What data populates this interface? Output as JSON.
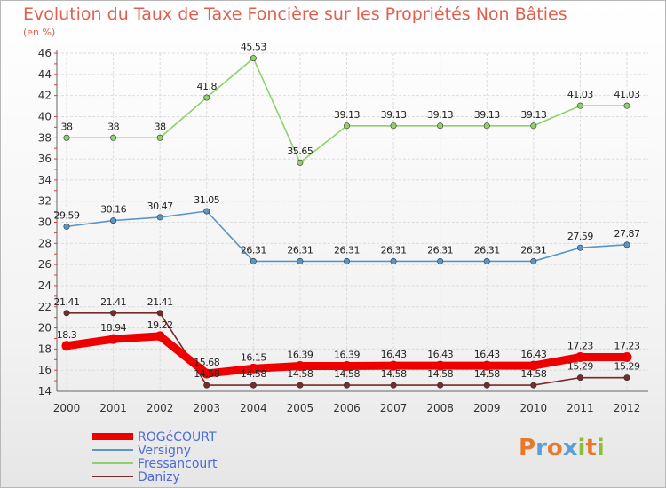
{
  "title": "Evolution du Taux de Taxe Foncière sur les Propriétés Non Bâties",
  "unit": "(en %)",
  "logo": "Proxiti",
  "chart_data": {
    "type": "line",
    "title": "Evolution du Taux de Taxe Foncière sur les Propriétés Non Bâties",
    "ylabel": "(en %)",
    "xlabel": "",
    "ylim": [
      14,
      46
    ],
    "yticks": [
      14,
      16,
      18,
      20,
      22,
      24,
      26,
      28,
      30,
      32,
      34,
      36,
      38,
      40,
      42,
      44,
      46
    ],
    "categories": [
      "2000",
      "2001",
      "2002",
      "2003",
      "2004",
      "2005",
      "2006",
      "2007",
      "2008",
      "2009",
      "2010",
      "2011",
      "2012"
    ],
    "grid": true,
    "legend_position": "bottom-left",
    "series": [
      {
        "name": "Fressancourt",
        "color": "#8fd16a",
        "values": [
          38,
          38,
          38,
          41.8,
          45.53,
          35.65,
          39.13,
          39.13,
          39.13,
          39.13,
          39.13,
          41.03,
          41.03
        ],
        "labels": [
          "38",
          "38",
          "38",
          "41.8",
          "45.53",
          "35.65",
          "39.13",
          "39.13",
          "39.13",
          "39.13",
          "39.13",
          "41.03",
          "41.03"
        ]
      },
      {
        "name": "Versigny",
        "color": "#5a96c8",
        "values": [
          29.59,
          30.16,
          30.47,
          31.05,
          26.31,
          26.31,
          26.31,
          26.31,
          26.31,
          26.31,
          26.31,
          27.59,
          27.87
        ],
        "labels": [
          "29.59",
          "30.16",
          "30.47",
          "31.05",
          "26.31",
          "26.31",
          "26.31",
          "26.31",
          "26.31",
          "26.31",
          "26.31",
          "27.59",
          "27.87"
        ]
      },
      {
        "name": "Danizy",
        "color": "#7a2a2a",
        "values": [
          21.41,
          21.41,
          21.41,
          14.58,
          14.58,
          14.58,
          14.58,
          14.58,
          14.58,
          14.58,
          14.58,
          15.29,
          15.29
        ],
        "labels": [
          "21.41",
          "21.41",
          "21.41",
          "14.58",
          "14.58",
          "14.58",
          "14.58",
          "14.58",
          "14.58",
          "14.58",
          "14.58",
          "15.29",
          "15.29"
        ]
      },
      {
        "name": "ROGéCOURT",
        "color": "#ee0000",
        "values": [
          18.3,
          18.94,
          19.22,
          15.68,
          16.15,
          16.39,
          16.39,
          16.43,
          16.43,
          16.43,
          16.43,
          17.23,
          17.23
        ],
        "labels": [
          "18.3",
          "18.94",
          "19.22",
          "15.68",
          "16.15",
          "16.39",
          "16.39",
          "16.43",
          "16.43",
          "16.43",
          "16.43",
          "17.23",
          "17.23"
        ]
      }
    ],
    "legend": [
      "ROGéCOURT",
      "Versigny",
      "Fressancourt",
      "Danizy"
    ]
  }
}
